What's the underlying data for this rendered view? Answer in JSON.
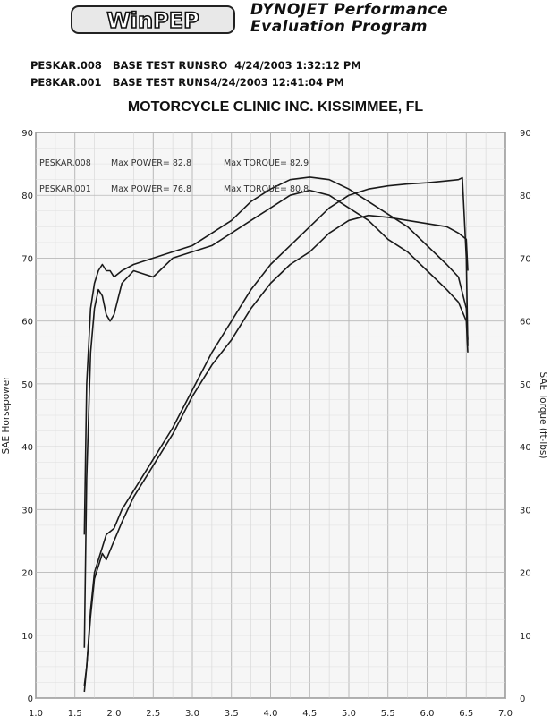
{
  "header": {
    "logo": "WinPEP",
    "title_line1": "DYNOJET Performance",
    "title_line2": "Evaluation Program",
    "runs": [
      {
        "id": "PESKAR.008",
        "desc": "BASE TEST RUNSRO",
        "date": "4/24/2003",
        "time": "1:32:12 PM"
      },
      {
        "id": "PE8KAR.001",
        "desc": "BASE TEST RUNS",
        "date": "4/24/2003",
        "time": "12:41:04 PM"
      }
    ],
    "shop": "MOTORCYCLE CLINIC INC. KISSIMMEE, FL"
  },
  "chart_data": {
    "type": "line",
    "xlabel": "",
    "ylabel_left": "SAE Horsepower",
    "ylabel_right": "SAE Torque (ft-lbs)",
    "xlim": [
      1.0,
      7.0
    ],
    "ylim_left": [
      0,
      90
    ],
    "ylim_right": [
      0,
      90
    ],
    "xticks": [
      "1.0",
      "1.5",
      "2.0",
      "2.5",
      "3.0",
      "3.5",
      "4.0",
      "4.5",
      "5.0",
      "5.5",
      "6.0",
      "6.5",
      "7.0"
    ],
    "yticks_left": [
      "0",
      "10",
      "20",
      "30",
      "40",
      "50",
      "60",
      "70",
      "80",
      "90"
    ],
    "yticks_right": [
      "0",
      "10",
      "20",
      "30",
      "40",
      "50",
      "60",
      "70",
      "80",
      "90"
    ],
    "grid": true,
    "annotations": [
      {
        "run": "PESKAR.008",
        "power_label": "Max POWER= 82.8",
        "torque_label": "Max TORQUE= 82.9"
      },
      {
        "run": "PESKAR.001",
        "power_label": "Max POWER= 76.8",
        "torque_label": "Max TORQUE= 80.8"
      }
    ],
    "series": [
      {
        "run": "PESKAR.008",
        "measure": "power",
        "x": [
          1.62,
          1.65,
          1.7,
          1.75,
          1.8,
          1.85,
          1.9,
          2.0,
          2.1,
          2.25,
          2.5,
          2.75,
          3.0,
          3.25,
          3.5,
          3.75,
          4.0,
          4.25,
          4.5,
          4.75,
          5.0,
          5.25,
          5.5,
          5.75,
          6.0,
          6.25,
          6.4,
          6.45,
          6.5,
          6.52
        ],
        "y": [
          2,
          5,
          14,
          20,
          22,
          24,
          26,
          27,
          30,
          33,
          38,
          43,
          49,
          55,
          60,
          65,
          69,
          72,
          75,
          78,
          80,
          81,
          81.5,
          81.8,
          82,
          82.3,
          82.5,
          82.8,
          70,
          56
        ]
      },
      {
        "run": "PESKAR.001",
        "measure": "power",
        "x": [
          1.62,
          1.65,
          1.7,
          1.75,
          1.8,
          1.85,
          1.9,
          2.0,
          2.1,
          2.25,
          2.5,
          2.75,
          3.0,
          3.25,
          3.5,
          3.75,
          4.0,
          4.25,
          4.5,
          4.75,
          5.0,
          5.25,
          5.5,
          5.75,
          6.0,
          6.25,
          6.4,
          6.5,
          6.52
        ],
        "y": [
          1,
          5,
          13,
          19,
          21,
          23,
          22,
          25,
          28,
          32,
          37,
          42,
          48,
          53,
          57,
          62,
          66,
          69,
          71,
          74,
          76,
          76.8,
          76.5,
          76,
          75.5,
          75,
          74,
          73,
          68
        ]
      },
      {
        "run": "PESKAR.008",
        "measure": "torque",
        "x": [
          1.62,
          1.65,
          1.7,
          1.75,
          1.8,
          1.85,
          1.9,
          1.95,
          2.0,
          2.1,
          2.25,
          2.5,
          2.75,
          3.0,
          3.25,
          3.5,
          3.75,
          4.0,
          4.25,
          4.5,
          4.75,
          5.0,
          5.25,
          5.5,
          5.75,
          6.0,
          6.25,
          6.4,
          6.5,
          6.52
        ],
        "y": [
          26,
          50,
          62,
          66,
          68,
          69,
          68,
          68,
          67,
          68,
          69,
          70,
          71,
          72,
          74,
          76,
          79,
          81,
          82.5,
          82.9,
          82.5,
          81,
          79,
          77,
          75,
          72,
          69,
          67,
          62,
          57
        ]
      },
      {
        "run": "PESKAR.001",
        "measure": "torque",
        "x": [
          1.62,
          1.65,
          1.7,
          1.75,
          1.8,
          1.85,
          1.9,
          1.95,
          2.0,
          2.1,
          2.25,
          2.5,
          2.75,
          3.0,
          3.25,
          3.5,
          3.75,
          4.0,
          4.25,
          4.5,
          4.75,
          5.0,
          5.25,
          5.5,
          5.75,
          6.0,
          6.25,
          6.4,
          6.5,
          6.52
        ],
        "y": [
          8,
          35,
          55,
          62,
          65,
          64,
          61,
          60,
          61,
          66,
          68,
          67,
          70,
          71,
          72,
          74,
          76,
          78,
          80,
          80.8,
          80,
          78,
          76,
          73,
          71,
          68,
          65,
          63,
          60,
          55
        ]
      }
    ]
  }
}
